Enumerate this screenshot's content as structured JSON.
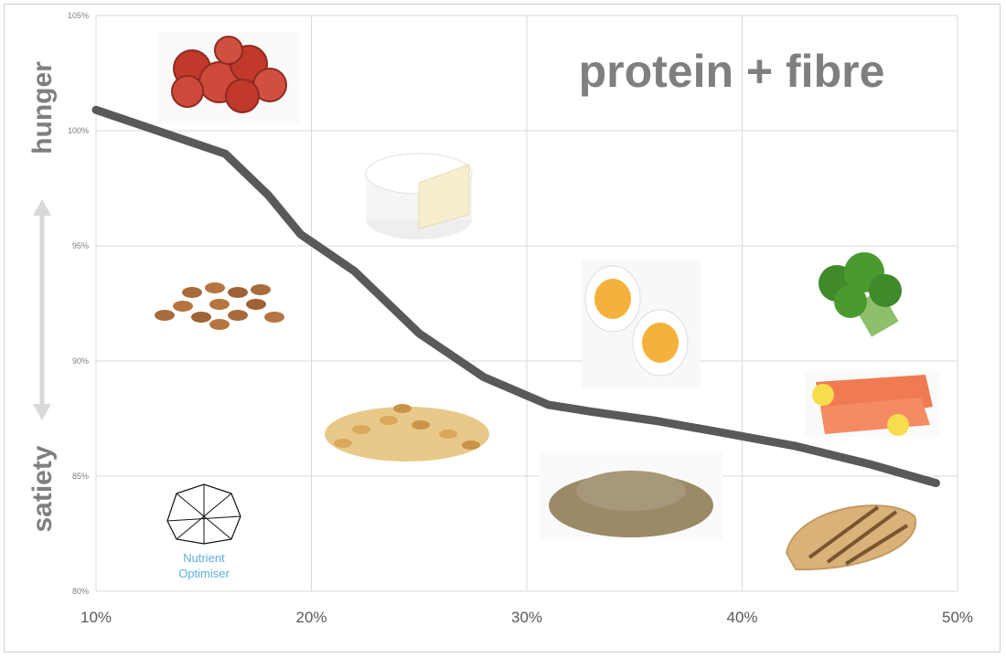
{
  "chart_data": {
    "type": "line",
    "title": "protein + fibre",
    "xlabel": "",
    "ylabel": "",
    "x_ticks": [
      "10%",
      "20%",
      "30%",
      "40%",
      "50%"
    ],
    "y_ticks": [
      "80%",
      "85%",
      "90%",
      "95%",
      "100%",
      "105%"
    ],
    "xlim": [
      10,
      50
    ],
    "ylim": [
      80,
      105
    ],
    "grid": true,
    "series": [
      {
        "x": [
          10,
          16,
          18,
          19.5,
          22,
          25,
          28,
          31,
          33,
          36,
          39,
          42.5,
          46,
          49
        ],
        "y": [
          100.9,
          99.0,
          97.2,
          95.5,
          93.9,
          91.2,
          89.3,
          88.1,
          87.8,
          87.4,
          86.9,
          86.3,
          85.5,
          84.7
        ]
      }
    ],
    "annotations": {
      "hunger_label": "hunger",
      "satiety_label": "satiety"
    },
    "food_icons": [
      "pepperoni-icon",
      "cheese-icon",
      "almonds-icon",
      "egg-icon",
      "broccoli-icon",
      "salmon-icon",
      "oats-icon",
      "lentils-icon",
      "chicken-icon"
    ],
    "logo": {
      "line1": "Nutrient",
      "line2": "Optimiser"
    },
    "colors": {
      "line": "#595959",
      "grid": "#d9d9d9",
      "arrow": "#d9d9d9",
      "logo_text": "#5ab0e0"
    }
  }
}
